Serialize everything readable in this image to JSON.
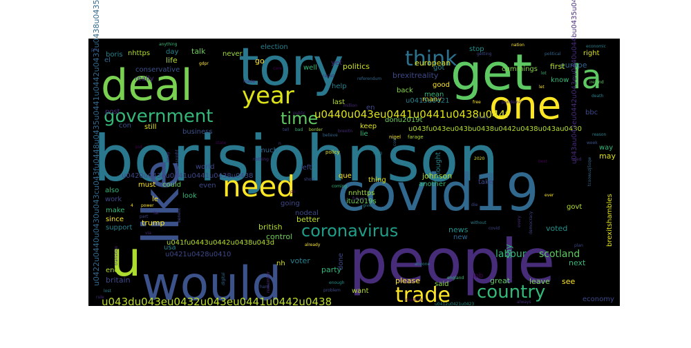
{
  "chart_data": {
    "type": "wordcloud",
    "title": "",
    "background": "#000000",
    "palette": [
      "#440154",
      "#3b528b",
      "#21918c",
      "#5ec962",
      "#fde725"
    ],
    "words": [
      {
        "text": "borisjohnson",
        "weight": 100,
        "color": "#2a788e"
      },
      {
        "text": "people",
        "weight": 82,
        "color": "#472c7a"
      },
      {
        "text": "covid19",
        "weight": 72,
        "color": "#31688e"
      },
      {
        "text": "tory",
        "weight": 68,
        "color": "#2a788e"
      },
      {
        "text": "like",
        "weight": 62,
        "color": "#3b528b"
      },
      {
        "text": "get",
        "weight": 58,
        "color": "#5ec962"
      },
      {
        "text": "deal",
        "weight": 55,
        "color": "#7ad151"
      },
      {
        "text": "would",
        "weight": 55,
        "color": "#3b528b"
      },
      {
        "text": "u",
        "weight": 58,
        "color": "#addc30"
      },
      {
        "text": "one",
        "weight": 50,
        "color": "#fde725"
      },
      {
        "text": "la",
        "weight": 44,
        "color": "#5ec962"
      },
      {
        "text": "need",
        "weight": 36,
        "color": "#fde725"
      },
      {
        "text": "year",
        "weight": 30,
        "color": "#dde318"
      },
      {
        "text": "think",
        "weight": 28,
        "color": "#2c728e"
      },
      {
        "text": "trade",
        "weight": 26,
        "color": "#fde725"
      },
      {
        "text": "country",
        "weight": 26,
        "color": "#35b779"
      },
      {
        "text": "government",
        "weight": 24,
        "color": "#35b779"
      },
      {
        "text": "time",
        "weight": 22,
        "color": "#5ec962"
      },
      {
        "text": "coronavirus",
        "weight": 22,
        "color": "#1f9e89"
      },
      {
        "text": "u0440u043eu0441u0441u0438u044f",
        "weight": 16,
        "color": "#dde318"
      },
      {
        "text": "u043du043eu0432u043eu0441u0442u0438",
        "weight": 16,
        "color": "#bddf26"
      },
      {
        "text": "u0422u0440u0430u043cu043fu0448u0435u0441u0442u0432u0438u0435",
        "weight": 12,
        "color": "#31688e"
      },
      {
        "text": "labour",
        "weight": 12,
        "color": "#35b779"
      },
      {
        "text": "scotland",
        "weight": 12,
        "color": "#5ec962"
      },
      {
        "text": "johnson",
        "weight": 11,
        "color": "#b5de2b"
      },
      {
        "text": "brexitreality",
        "weight": 10,
        "color": "#3e4989"
      },
      {
        "text": "brexitshambles",
        "weight": 10,
        "color": "#e5e419"
      },
      {
        "text": "say",
        "weight": 12,
        "color": "#35b779"
      },
      {
        "text": "control",
        "weight": 11,
        "color": "#6ece58"
      },
      {
        "text": "british",
        "weight": 11,
        "color": "#b5de2b"
      },
      {
        "text": "european",
        "weight": 10,
        "color": "#dde318"
      },
      {
        "text": "conservative",
        "weight": 10,
        "color": "#3b528b"
      },
      {
        "text": "cummings",
        "weight": 10,
        "color": "#86d549"
      },
      {
        "text": "politics",
        "weight": 10,
        "color": "#cde11d"
      },
      {
        "text": "party",
        "weight": 10,
        "color": "#35b779"
      },
      {
        "text": "voter",
        "weight": 10,
        "color": "#26828e"
      },
      {
        "text": "trump",
        "weight": 10,
        "color": "#fde725"
      },
      {
        "text": "britain",
        "weight": 10,
        "color": "#3e4989"
      },
      {
        "text": "better",
        "weight": 10,
        "color": "#bddf26"
      },
      {
        "text": "news",
        "weight": 10,
        "color": "#21918c"
      },
      {
        "text": "please",
        "weight": 10,
        "color": "#fde725"
      },
      {
        "text": "great",
        "weight": 10,
        "color": "#5ec962"
      },
      {
        "text": "leave",
        "weight": 10,
        "color": "#7ad151"
      },
      {
        "text": "done",
        "weight": 9,
        "color": "#3e4989"
      },
      {
        "text": "next",
        "weight": 9,
        "color": "#35b779"
      },
      {
        "text": "voted",
        "weight": 9,
        "color": "#21918c"
      },
      {
        "text": "see",
        "weight": 10,
        "color": "#fde725"
      },
      {
        "text": "europe",
        "weight": 9,
        "color": "#31688e"
      },
      {
        "text": "boris",
        "weight": 9,
        "color": "#26828e"
      },
      {
        "text": "nhttps",
        "weight": 9,
        "color": "#b5de2b"
      },
      {
        "text": "election",
        "weight": 8,
        "color": "#26828e"
      },
      {
        "text": "really",
        "weight": 8,
        "color": "#472c7a"
      },
      {
        "text": "stop",
        "weight": 8,
        "color": "#21918c"
      },
      {
        "text": "first",
        "weight": 8,
        "color": "#b5de2b"
      },
      {
        "text": "right",
        "weight": 8,
        "color": "#dde318"
      },
      {
        "text": "know",
        "weight": 8,
        "color": "#35b779"
      },
      {
        "text": "bbc",
        "weight": 8,
        "color": "#3e4989"
      },
      {
        "text": "life",
        "weight": 8,
        "color": "#b5de2b"
      },
      {
        "text": "talk",
        "weight": 8,
        "color": "#6ece58"
      },
      {
        "text": "day",
        "weight": 8,
        "color": "#26828e"
      },
      {
        "text": "el",
        "weight": 8,
        "color": "#31688e"
      },
      {
        "text": "never",
        "weight": 8,
        "color": "#a0da39"
      },
      {
        "text": "go",
        "weight": 8,
        "color": "#fde725"
      },
      {
        "text": "well",
        "weight": 8,
        "color": "#35b779"
      },
      {
        "text": "yet",
        "weight": 8,
        "color": "#472c7a"
      },
      {
        "text": "got",
        "weight": 8,
        "color": "#26828e"
      },
      {
        "text": "good",
        "weight": 8,
        "color": "#fde725"
      },
      {
        "text": "mean",
        "weight": 8,
        "color": "#35b779"
      },
      {
        "text": "many",
        "weight": 8,
        "color": "#fde725"
      },
      {
        "text": "back",
        "weight": 8,
        "color": "#86d549"
      },
      {
        "text": "last",
        "weight": 8,
        "color": "#b5de2b"
      },
      {
        "text": "help",
        "weight": 8,
        "color": "#26828e"
      },
      {
        "text": "en",
        "weight": 8,
        "color": "#3e4989"
      },
      {
        "text": "post",
        "weight": 8,
        "color": "#472c7a"
      },
      {
        "text": "business",
        "weight": 8,
        "color": "#3b528b"
      },
      {
        "text": "con",
        "weight": 8,
        "color": "#3b528b"
      },
      {
        "text": "still",
        "weight": 8,
        "color": "#e5e419"
      },
      {
        "text": "much",
        "weight": 8,
        "color": "#31688e"
      },
      {
        "text": "keep",
        "weight": 8,
        "color": "#dde318"
      },
      {
        "text": "lie",
        "weight": 8,
        "color": "#35b779"
      },
      {
        "text": "world",
        "weight": 8,
        "color": "#3e4989"
      },
      {
        "text": "left",
        "weight": 8,
        "color": "#3e4989"
      },
      {
        "text": "que",
        "weight": 8,
        "color": "#fde725"
      },
      {
        "text": "thing",
        "weight": 8,
        "color": "#dde318"
      },
      {
        "text": "thought",
        "weight": 8,
        "color": "#26828e"
      },
      {
        "text": "way",
        "weight": 8,
        "color": "#35b779"
      },
      {
        "text": "may",
        "weight": 8,
        "color": "#dde318"
      },
      {
        "text": "also",
        "weight": 8,
        "color": "#35b779"
      },
      {
        "text": "work",
        "weight": 8,
        "color": "#3e4989"
      },
      {
        "text": "make",
        "weight": 8,
        "color": "#35b779"
      },
      {
        "text": "since",
        "weight": 8,
        "color": "#fde725"
      },
      {
        "text": "support",
        "weight": 8,
        "color": "#26828e"
      },
      {
        "text": "must",
        "weight": 8,
        "color": "#fde725"
      },
      {
        "text": "could",
        "weight": 8,
        "color": "#6ece58"
      },
      {
        "text": "even",
        "weight": 8,
        "color": "#3e4989"
      },
      {
        "text": "look",
        "weight": 8,
        "color": "#35b779"
      },
      {
        "text": "take",
        "weight": 8,
        "color": "#3e4989"
      },
      {
        "text": "another",
        "weight": 8,
        "color": "#35b779"
      },
      {
        "text": "govt",
        "weight": 8,
        "color": "#b5de2b"
      },
      {
        "text": "going",
        "weight": 8,
        "color": "#3e4989"
      },
      {
        "text": "nnhttps",
        "weight": 8,
        "color": "#a0da39"
      },
      {
        "text": "itu2019s",
        "weight": 8,
        "color": "#6ece58"
      },
      {
        "text": "nodeal",
        "weight": 7,
        "color": "#3e4989"
      },
      {
        "text": "usa",
        "weight": 7,
        "color": "#26828e"
      },
      {
        "text": "end",
        "weight": 8,
        "color": "#b5de2b"
      },
      {
        "text": "said",
        "weight": 8,
        "color": "#86d549"
      },
      {
        "text": "want",
        "weight": 8,
        "color": "#b5de2b"
      },
      {
        "text": "job",
        "weight": 8,
        "color": "#440154"
      },
      {
        "text": "economy",
        "weight": 8,
        "color": "#3e4989"
      },
      {
        "text": "nh",
        "weight": 8,
        "color": "#dde318"
      },
      {
        "text": "new",
        "weight": 8,
        "color": "#31688e"
      },
      {
        "text": "le",
        "weight": 8,
        "color": "#fde725"
      },
      {
        "text": "donu2019t",
        "weight": 7,
        "color": "#6ece58"
      },
      {
        "text": "u0415u0421",
        "weight": 7,
        "color": "#26828e"
      },
      {
        "text": "u0420u043eu0441u0441u0438u0438",
        "weight": 7,
        "color": "#3e4989"
      },
      {
        "text": "u041fu0443u0442u0438u043d",
        "weight": 8,
        "color": "#b5de2b"
      },
      {
        "text": "u0421u0428u0410",
        "weight": 7,
        "color": "#3e4989"
      },
      {
        "text": "u043fu043eu043bu0438u0442u0438u043au0430",
        "weight": 8,
        "color": "#b5de2b"
      },
      {
        "text": "u043au043eu0442u043eu0440u044bu0435u0432u0432",
        "weight": 8,
        "color": "#472c7a"
      },
      {
        "text": "u0412u0421u0423",
        "weight": 6,
        "color": "#21918c"
      },
      {
        "text": "anything",
        "weight": 5,
        "color": "#35b779"
      },
      {
        "text": "gdpr",
        "weight": 5,
        "color": "#fde725"
      },
      {
        "text": "care",
        "weight": 5,
        "color": "#440154"
      },
      {
        "text": "nation",
        "weight": 5,
        "color": "#fde725"
      },
      {
        "text": "economic",
        "weight": 5,
        "color": "#26828e"
      },
      {
        "text": "political",
        "weight": 5,
        "color": "#31688e"
      },
      {
        "text": "ireland",
        "weight": 5,
        "color": "#5ec962"
      },
      {
        "text": "lot",
        "weight": 5,
        "color": "#35b779"
      },
      {
        "text": "let",
        "weight": 5,
        "color": "#fde725"
      },
      {
        "text": "death",
        "weight": 5,
        "color": "#26828e"
      },
      {
        "text": "racist",
        "weight": 5,
        "color": "#472c7a"
      },
      {
        "text": "referendum",
        "weight": 5,
        "color": "#31688e"
      },
      {
        "text": "brexitn",
        "weight": 5,
        "color": "#472c7a"
      },
      {
        "text": "nigel",
        "weight": 6,
        "color": "#fde725"
      },
      {
        "text": "farage",
        "weight": 6,
        "color": "#b5de2b"
      },
      {
        "text": "free",
        "weight": 5,
        "color": "#fde725"
      },
      {
        "text": "money",
        "weight": 5,
        "color": "#3e4989"
      },
      {
        "text": "pandemic",
        "weight": 5,
        "color": "#472c7a"
      },
      {
        "text": "believe",
        "weight": 5,
        "color": "#31688e"
      },
      {
        "text": "public",
        "weight": 5,
        "color": "#472c7a"
      },
      {
        "text": "tell",
        "weight": 5,
        "color": "#3e4989"
      },
      {
        "text": "bad",
        "weight": 5,
        "color": "#35b779"
      },
      {
        "text": "border",
        "weight": 5,
        "color": "#b5de2b"
      },
      {
        "text": "reason",
        "weight": 5,
        "color": "#26828e"
      },
      {
        "text": "week",
        "weight": 5,
        "color": "#3b528b"
      },
      {
        "text": "best",
        "weight": 5,
        "color": "#440154"
      },
      {
        "text": "used",
        "weight": 5,
        "color": "#472c7a"
      },
      {
        "text": "nothing",
        "weight": 5,
        "color": "#472c7a"
      },
      {
        "text": "policy",
        "weight": 5,
        "color": "#dde318"
      },
      {
        "text": "long",
        "weight": 5,
        "color": "#26828e"
      },
      {
        "text": "state",
        "weight": 5,
        "color": "#440154"
      },
      {
        "text": "newsnight",
        "weight": 5,
        "color": "#3e4989"
      },
      {
        "text": "show",
        "weight": 5,
        "color": "#3e4989"
      },
      {
        "text": "coming",
        "weight": 5,
        "color": "#35b779"
      },
      {
        "text": "ever",
        "weight": 5,
        "color": "#fde725"
      },
      {
        "text": "2020",
        "weight": 5,
        "color": "#dde318"
      },
      {
        "text": "future",
        "weight": 5,
        "color": "#472c7a"
      },
      {
        "text": "give",
        "weight": 5,
        "color": "#26828e"
      },
      {
        "text": "power",
        "weight": 5,
        "color": "#fde725"
      },
      {
        "text": "part",
        "weight": 5,
        "color": "#3e4989"
      },
      {
        "text": "benefit",
        "weight": 5,
        "color": "#3e4989"
      },
      {
        "text": "die",
        "weight": 5,
        "color": "#3e4989"
      },
      {
        "text": "without",
        "weight": 5,
        "color": "#26828e"
      },
      {
        "text": "covid",
        "weight": 5,
        "color": "#3e4989"
      },
      {
        "text": "every",
        "weight": 5,
        "color": "#472c7a"
      },
      {
        "text": "democracy",
        "weight": 5,
        "color": "#3e4989"
      },
      {
        "text": "plan",
        "weight": 5,
        "color": "#3e4989"
      },
      {
        "text": "transition",
        "weight": 5,
        "color": "#472c7a"
      },
      {
        "text": "via",
        "weight": 5,
        "color": "#472c7a"
      },
      {
        "text": "digital",
        "weight": 5,
        "color": "#31688e"
      },
      {
        "text": "already",
        "weight": 5,
        "color": "#fde725"
      },
      {
        "text": "anyone",
        "weight": 5,
        "color": "#26828e"
      },
      {
        "text": "enough",
        "weight": 5,
        "color": "#21918c"
      },
      {
        "text": "problem",
        "weight": 5,
        "color": "#3e4989"
      },
      {
        "text": "remember",
        "weight": 5,
        "color": "#472c7a"
      },
      {
        "text": "england",
        "weight": 5,
        "color": "#35b779"
      },
      {
        "text": "medium",
        "weight": 5,
        "color": "#440154"
      },
      {
        "text": "hard",
        "weight": 5,
        "color": "#3e4989"
      },
      {
        "text": "always",
        "weight": 5,
        "color": "#472c7a"
      },
      {
        "text": "lost",
        "weight": 5,
        "color": "#26828e"
      },
      {
        "text": "rule",
        "weight": 5,
        "color": "#472c7a"
      },
      {
        "text": "pm",
        "weight": 5,
        "color": "#3e4989"
      },
      {
        "text": "made",
        "weight": 5,
        "color": "#472c7a"
      },
      {
        "text": "getting",
        "weight": 5,
        "color": "#3e4989"
      },
      {
        "text": "ca",
        "weight": 5,
        "color": "#440154"
      },
      {
        "text": "cost",
        "weight": 5,
        "color": "#31688e"
      },
      {
        "text": "million",
        "weight": 5,
        "color": "#472c7a"
      },
      {
        "text": "far",
        "weight": 5,
        "color": "#472c7a"
      },
      {
        "text": "put",
        "weight": 5,
        "color": "#440154"
      },
      {
        "text": "tcoowuzj5sqw",
        "weight": 5,
        "color": "#31688e"
      },
      {
        "text": "away",
        "weight": 5,
        "color": "#472c7a"
      },
      {
        "text": "ph",
        "weight": 5,
        "color": "#440154"
      },
      {
        "text": "4",
        "weight": 5,
        "color": "#fde725"
      },
      {
        "text": "n",
        "weight": 5,
        "color": "#3e4989"
      }
    ]
  }
}
